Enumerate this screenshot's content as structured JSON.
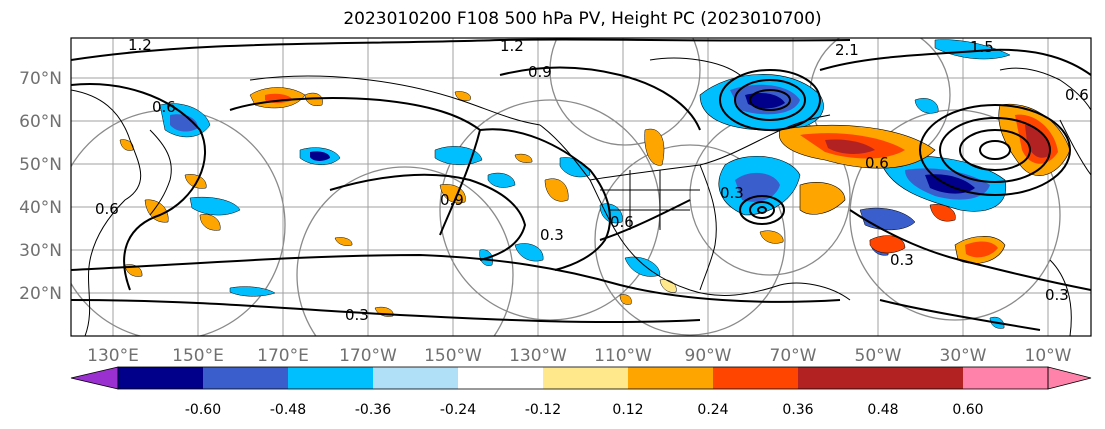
{
  "title": "2023010200 F108 500 hPa PV, Height PC (2023010700)",
  "lat_ticks": [
    "70°N",
    "60°N",
    "50°N",
    "40°N",
    "30°N",
    "20°N"
  ],
  "lon_ticks": [
    "130°E",
    "150°E",
    "170°E",
    "170°W",
    "150°W",
    "130°W",
    "110°W",
    "90°W",
    "70°W",
    "50°W",
    "30°W",
    "10°W"
  ],
  "colorbar": {
    "levels": [
      "-0.60",
      "-0.48",
      "-0.36",
      "-0.24",
      "-0.12",
      "0.12",
      "0.24",
      "0.36",
      "0.48",
      "0.60"
    ],
    "colors": [
      "#9b30d0",
      "#00008b",
      "#3a5fcd",
      "#00bfff",
      "#b0e0f8",
      "#ffffff",
      "#ffe88c",
      "#ffa500",
      "#ff4500",
      "#b22222",
      "#ff82ab"
    ]
  },
  "contour_labels": [
    "1.2",
    "1.2",
    "0.9",
    "0.6",
    "0.9",
    "0.6",
    "0.3",
    "0.6",
    "0.3",
    "0.3",
    "0.6",
    "0.3",
    "2.1",
    "1.5",
    "0.6",
    "0.3"
  ]
}
